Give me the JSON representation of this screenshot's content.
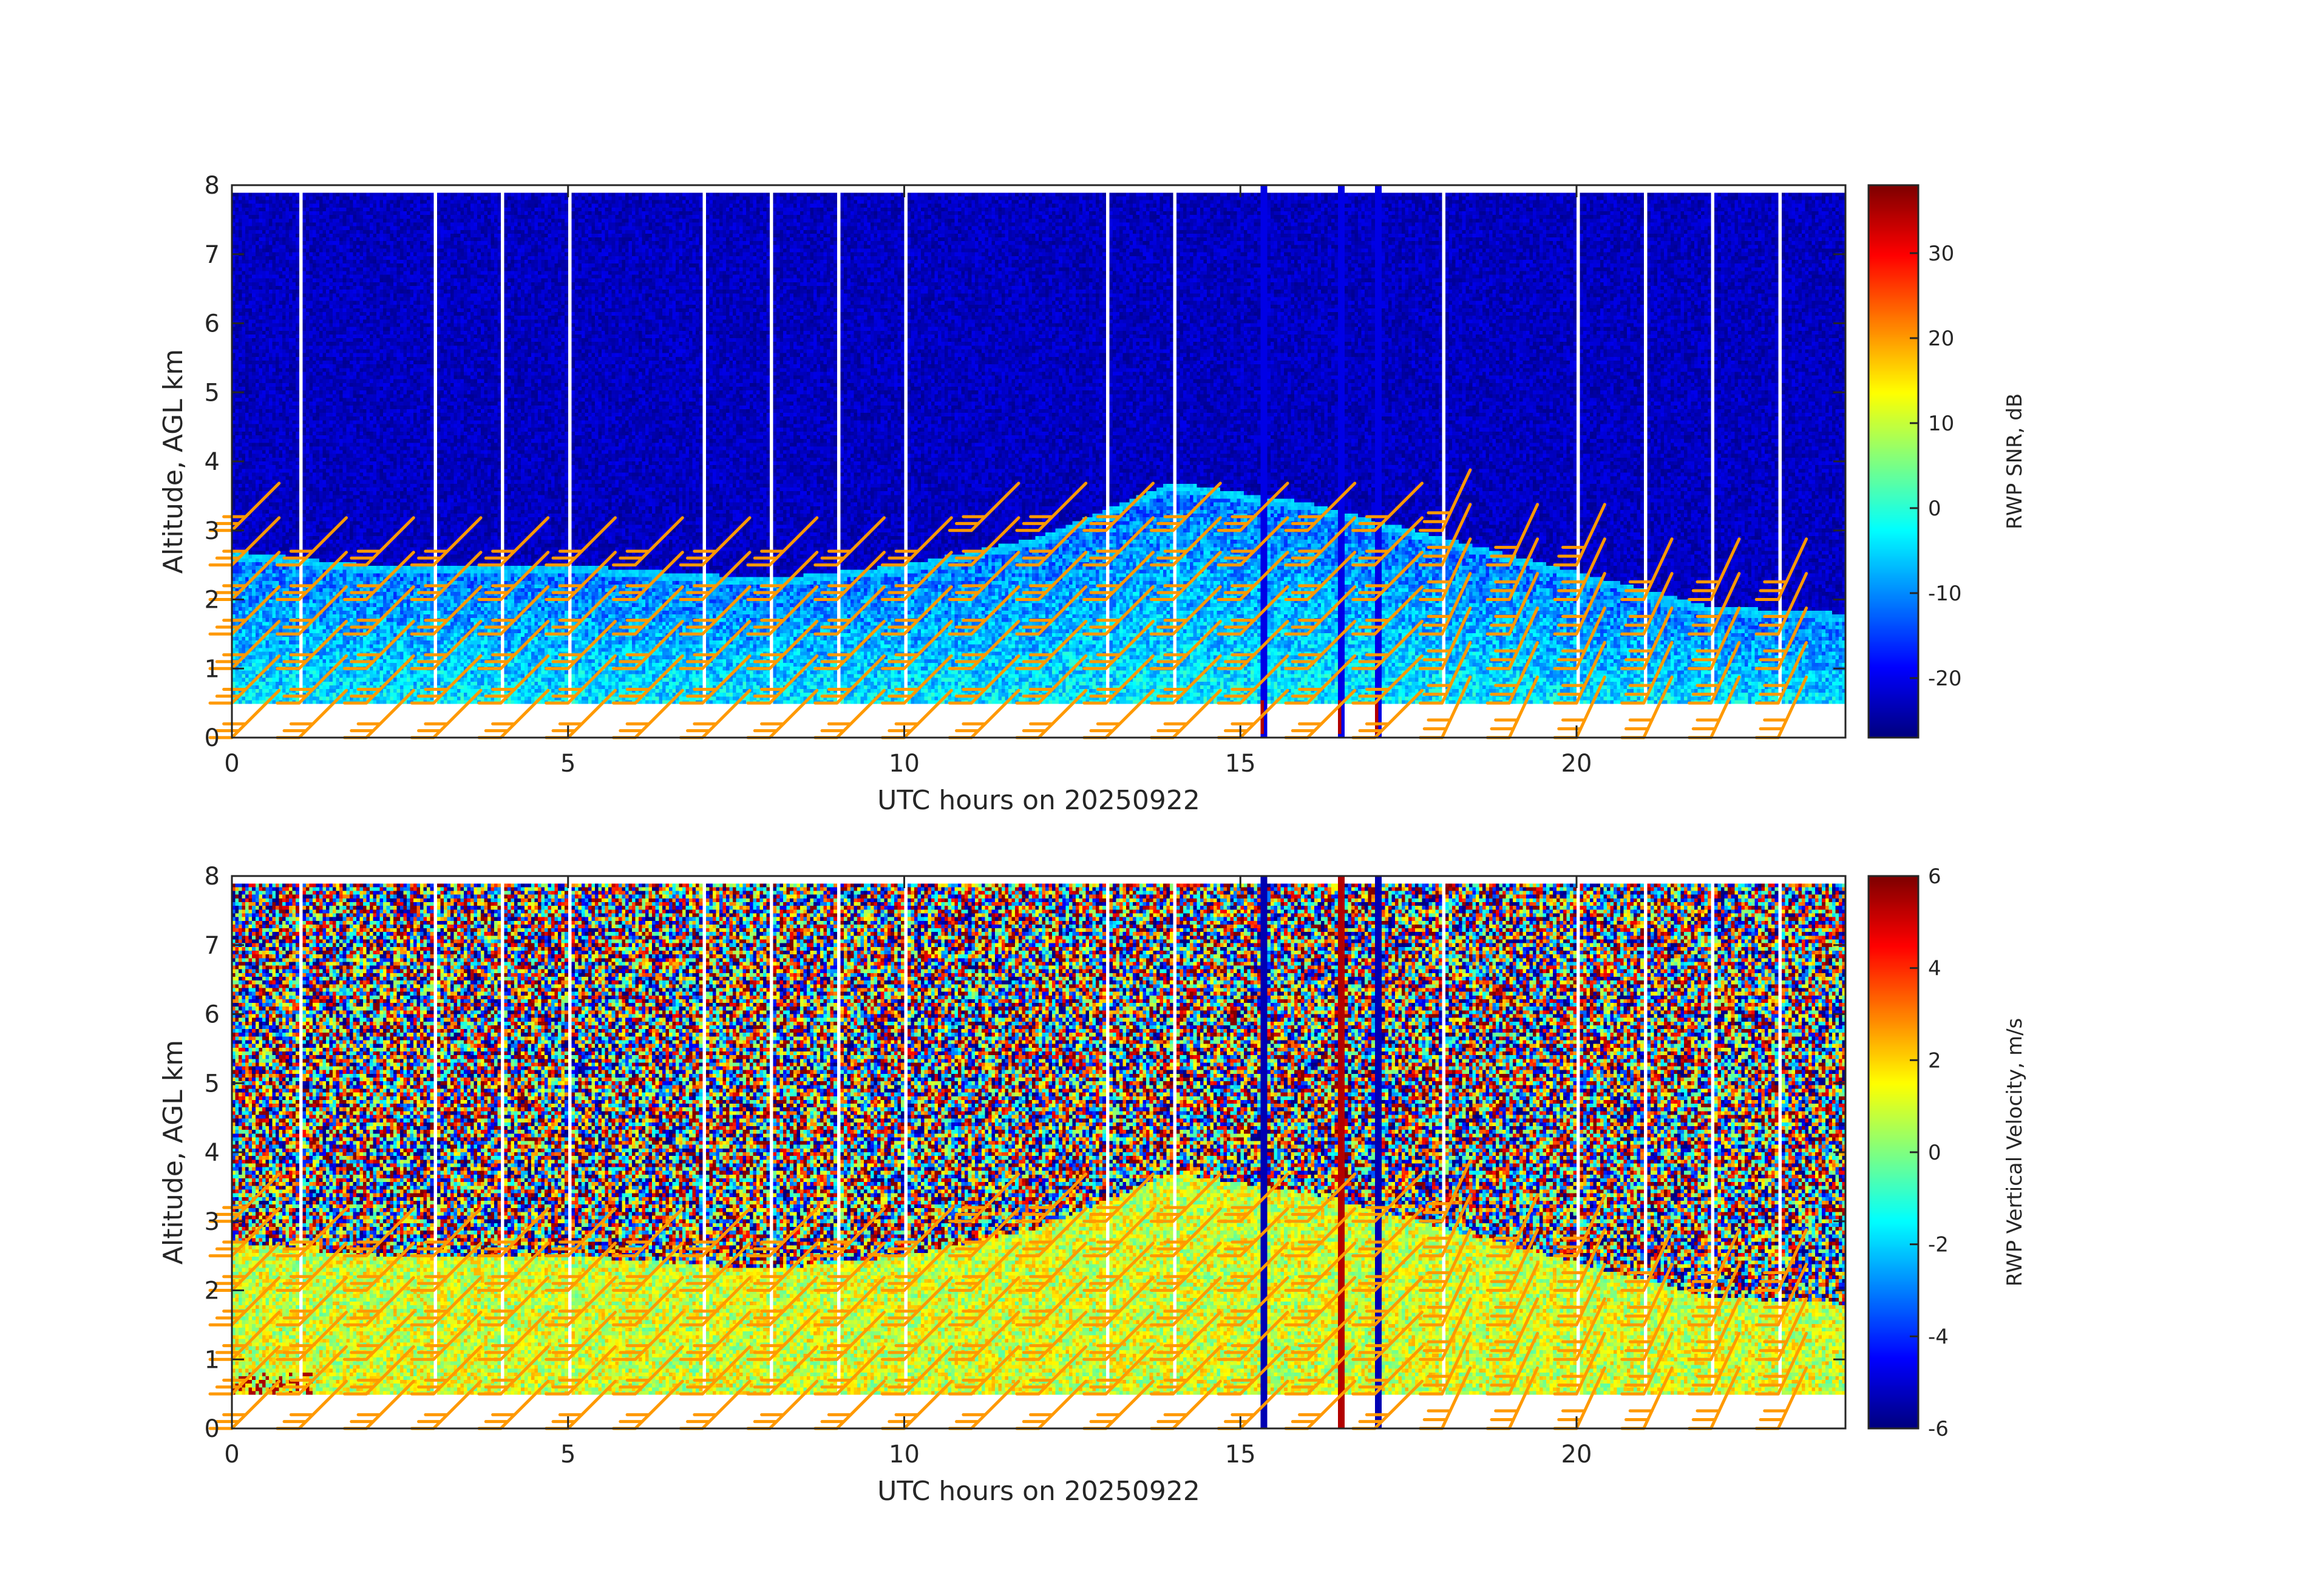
{
  "chart_data": [
    {
      "type": "heatmap",
      "xlabel": "UTC hours on 20250922",
      "ylabel": "Altitude, AGL km",
      "xlim": [
        0,
        24
      ],
      "ylim": [
        0,
        8
      ],
      "x_ticks": [
        0,
        5,
        10,
        15,
        20
      ],
      "y_ticks": [
        0,
        1,
        2,
        3,
        4,
        5,
        6,
        7,
        8
      ],
      "data_altitude_range_km": [
        0.5,
        7.9
      ],
      "colorbar": {
        "label": "RWP SNR, dB",
        "range": [
          -27,
          38
        ],
        "ticks": [
          -20,
          -10,
          0,
          10,
          20,
          30
        ],
        "colormap": "jet"
      },
      "features": {
        "background_snr_db": -23,
        "boundary_layer_top_km": [
          {
            "hour": 0,
            "alt": 2.7
          },
          {
            "hour": 2,
            "alt": 2.5
          },
          {
            "hour": 5,
            "alt": 2.5
          },
          {
            "hour": 8,
            "alt": 2.3
          },
          {
            "hour": 10,
            "alt": 2.5
          },
          {
            "hour": 12,
            "alt": 2.9
          },
          {
            "hour": 14,
            "alt": 3.7
          },
          {
            "hour": 16,
            "alt": 3.4
          },
          {
            "hour": 18,
            "alt": 2.9
          },
          {
            "hour": 20,
            "alt": 2.4
          },
          {
            "hour": 22,
            "alt": 1.9
          },
          {
            "hour": 24,
            "alt": 1.8
          }
        ],
        "missing_data_hours": [
          1.0,
          3.0,
          4.0,
          5.0,
          7.0,
          8.0,
          9.0,
          10.0,
          13.0,
          14.0,
          18.0,
          20.0,
          21.0,
          22.0,
          23.0
        ],
        "strong_echo_columns_hours": [
          15.3,
          16.45,
          17.0
        ]
      },
      "wind_barbs": {
        "color": "#ff9900",
        "hours": [
          0,
          1,
          2,
          3,
          4,
          5,
          6,
          7,
          8,
          9,
          10,
          11,
          12,
          13,
          14,
          15,
          16,
          17,
          18,
          19,
          20,
          21,
          22,
          23
        ],
        "altitudes_km": [
          0,
          0.5,
          1.0,
          1.5,
          2.0,
          2.5,
          3.0
        ]
      }
    },
    {
      "type": "heatmap",
      "xlabel": "UTC hours on 20250922",
      "ylabel": "Altitude, AGL km",
      "xlim": [
        0,
        24
      ],
      "ylim": [
        0,
        8
      ],
      "x_ticks": [
        0,
        5,
        10,
        15,
        20
      ],
      "y_ticks": [
        0,
        1,
        2,
        3,
        4,
        5,
        6,
        7,
        8
      ],
      "data_altitude_range_km": [
        0.5,
        7.9
      ],
      "colorbar": {
        "label": "RWP Vertical Velocity, m/s",
        "range": [
          -6,
          6
        ],
        "ticks": [
          -6,
          -4,
          -2,
          0,
          2,
          4,
          6
        ],
        "colormap": "jet"
      },
      "features": {
        "background": "noise between -6 and 6 m/s above boundary layer",
        "boundary_layer_velocity_ms": 1,
        "boundary_layer_top_km": [
          {
            "hour": 0,
            "alt": 2.7
          },
          {
            "hour": 2,
            "alt": 2.5
          },
          {
            "hour": 5,
            "alt": 2.5
          },
          {
            "hour": 8,
            "alt": 2.3
          },
          {
            "hour": 10,
            "alt": 2.5
          },
          {
            "hour": 12,
            "alt": 2.9
          },
          {
            "hour": 14,
            "alt": 3.7
          },
          {
            "hour": 16,
            "alt": 3.4
          },
          {
            "hour": 18,
            "alt": 2.9
          },
          {
            "hour": 20,
            "alt": 2.4
          },
          {
            "hour": 22,
            "alt": 1.9
          },
          {
            "hour": 24,
            "alt": 1.8
          }
        ],
        "missing_data_hours": [
          1.0,
          3.0,
          4.0,
          5.0,
          7.0,
          8.0,
          9.0,
          10.0,
          13.0,
          14.0,
          18.0,
          20.0,
          21.0,
          22.0,
          23.0
        ],
        "strong_echo_columns_hours": [
          15.3,
          16.45,
          17.0
        ]
      },
      "wind_barbs": {
        "color": "#ff9900",
        "hours": [
          0,
          1,
          2,
          3,
          4,
          5,
          6,
          7,
          8,
          9,
          10,
          11,
          12,
          13,
          14,
          15,
          16,
          17,
          18,
          19,
          20,
          21,
          22,
          23
        ],
        "altitudes_km": [
          0,
          0.5,
          1.0,
          1.5,
          2.0,
          2.5,
          3.0
        ]
      }
    }
  ]
}
